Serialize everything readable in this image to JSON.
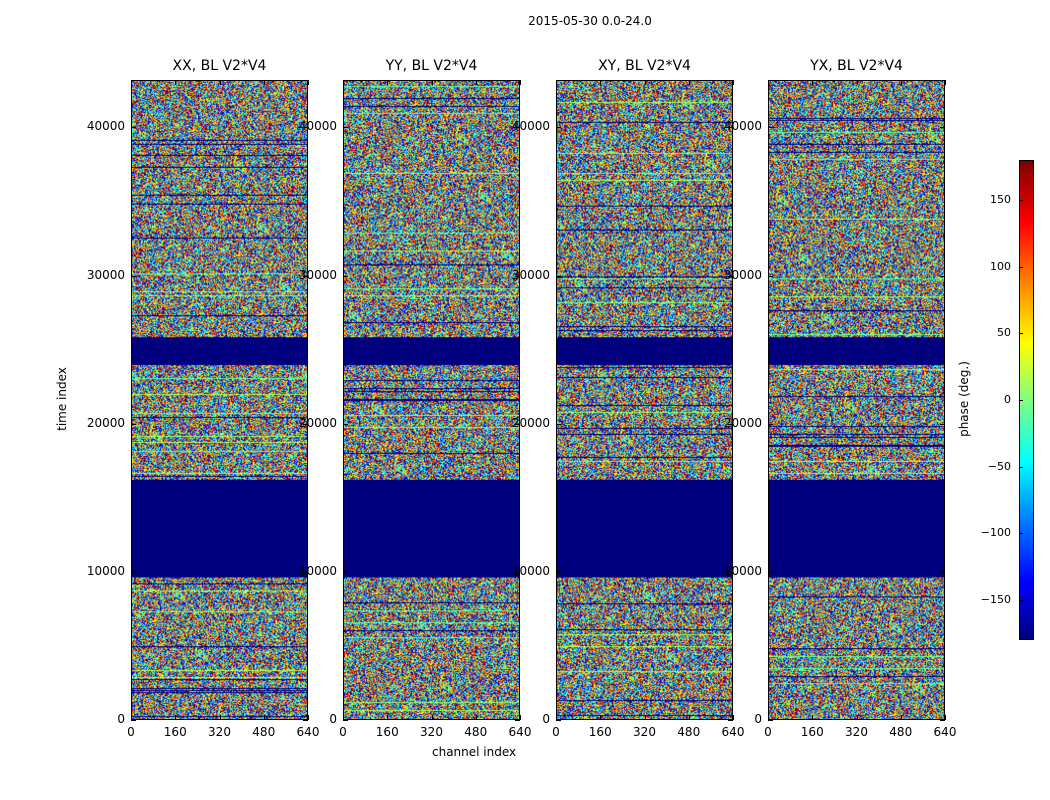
{
  "chart_data": {
    "type": "heatmap",
    "suptitle": "2015-05-30 0.0-24.0",
    "panels": [
      {
        "title": "XX, BL V2*V4"
      },
      {
        "title": "YY, BL V2*V4"
      },
      {
        "title": "XY, BL V2*V4"
      },
      {
        "title": "YX, BL V2*V4"
      }
    ],
    "xlabel": "channel index",
    "ylabel": "time index",
    "x_ticks": [
      "0",
      "160",
      "320",
      "480",
      "640"
    ],
    "x_tick_values": [
      0,
      160,
      320,
      480,
      640
    ],
    "y_ticks": [
      "0",
      "10000",
      "20000",
      "30000",
      "40000"
    ],
    "y_tick_values": [
      0,
      10000,
      20000,
      30000,
      40000
    ],
    "xlim": [
      0,
      640
    ],
    "ylim": [
      0,
      43200
    ],
    "colorbar": {
      "label": "phase (deg.)",
      "ticks": [
        "−150",
        "−100",
        "−50",
        "0",
        "50",
        "100",
        "150"
      ],
      "tick_values": [
        -150,
        -100,
        -50,
        0,
        50,
        100,
        150
      ],
      "range": [
        -180,
        180
      ]
    },
    "flagged_time_ranges": [
      [
        9600,
        16200
      ],
      [
        24000,
        25900
      ]
    ],
    "colormap": [
      "#00007f",
      "#0000ff",
      "#007fff",
      "#00ffff",
      "#7fff7f",
      "#ffff00",
      "#ff7f00",
      "#ff0000",
      "#7f0000"
    ]
  }
}
